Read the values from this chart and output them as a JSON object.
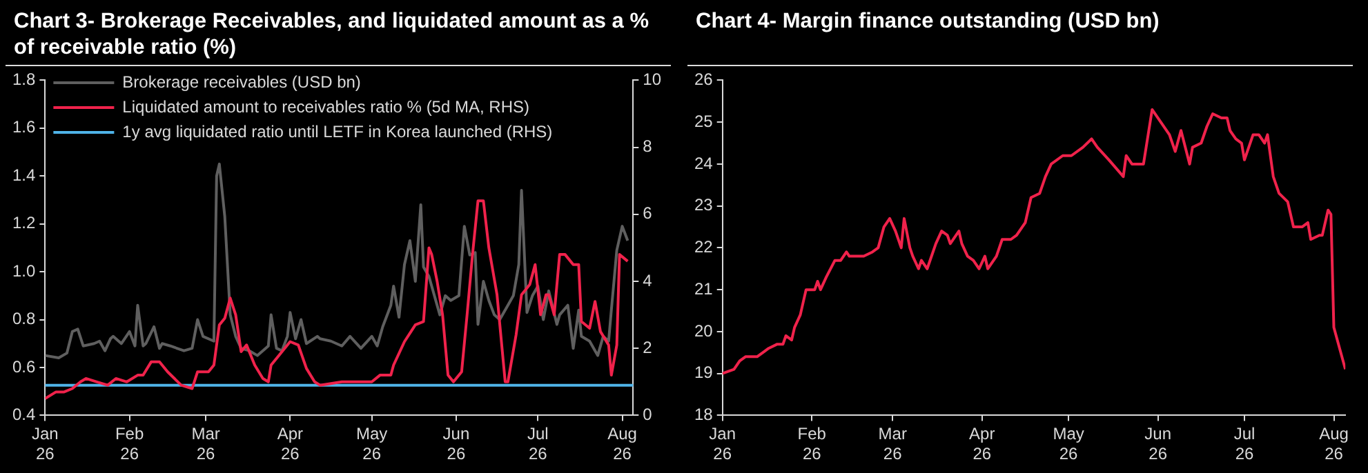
{
  "chart_data": [
    {
      "type": "line",
      "title": "Chart 3- Brokerage Receivables, and liquidated amount as a % of receivable ratio (%)",
      "legend": "top left",
      "grid": false,
      "xlim": [
        "2026-01-01",
        "2026-08-05"
      ],
      "xticks": [
        {
          "value": "2026-01-01",
          "label": "Jan 26"
        },
        {
          "value": "2026-02-01",
          "label": "Feb 26"
        },
        {
          "value": "2026-03-01",
          "label": "Mar 26"
        },
        {
          "value": "2026-04-01",
          "label": "Apr 26"
        },
        {
          "value": "2026-05-01",
          "label": "May 26"
        },
        {
          "value": "2026-06-01",
          "label": "Jun 26"
        },
        {
          "value": "2026-07-01",
          "label": "Jul 26"
        },
        {
          "value": "2026-08-01",
          "label": "Aug 26"
        }
      ],
      "ylim": [
        0.4,
        1.8
      ],
      "yticks": [
        0.4,
        0.6,
        0.8,
        {
          "value": 1,
          "label": "1.0"
        },
        1.2,
        1.4,
        1.6,
        1.8
      ],
      "y2lim": [
        0,
        10
      ],
      "y2ticks": [
        0,
        2,
        4,
        6,
        8,
        10
      ],
      "ref_lines": [
        {
          "axis": "y2",
          "value": 0.9,
          "label": "1y avg liquidated ratio until LETF in Korea launched (RHS)",
          "color": "#4fb3e8"
        }
      ],
      "series": [
        {
          "name": "Brokerage receivables (USD bn)",
          "color": "#5f5f5f",
          "x": [
            "2026-01-01",
            "2026-01-06",
            "2026-01-09",
            "2026-01-11",
            "2026-01-13",
            "2026-01-15",
            "2026-01-19",
            "2026-01-21",
            "2026-01-23",
            "2026-01-25",
            "2026-01-26",
            "2026-01-29",
            "2026-02-01",
            "2026-02-03",
            "2026-02-04",
            "2026-02-06",
            "2026-02-07",
            "2026-02-10",
            "2026-02-12",
            "2026-02-13",
            "2026-02-16",
            "2026-02-21",
            "2026-02-24",
            "2026-02-26",
            "2026-02-28",
            "2026-03-04",
            "2026-03-05",
            "2026-03-06",
            "2026-03-08",
            "2026-03-10",
            "2026-03-12",
            "2026-03-14",
            "2026-03-17",
            "2026-03-20",
            "2026-03-24",
            "2026-03-25",
            "2026-03-27",
            "2026-03-29",
            "2026-03-31",
            "2026-04-01",
            "2026-04-03",
            "2026-04-05",
            "2026-04-07",
            "2026-04-11",
            "2026-04-12",
            "2026-04-16",
            "2026-04-20",
            "2026-04-23",
            "2026-04-27",
            "2026-05-01",
            "2026-05-03",
            "2026-05-05",
            "2026-05-08",
            "2026-05-09",
            "2026-05-11",
            "2026-05-13",
            "2026-05-15",
            "2026-05-17",
            "2026-05-19",
            "2026-05-20",
            "2026-05-22",
            "2026-05-26",
            "2026-05-28",
            "2026-05-30",
            "2026-06-02",
            "2026-06-04",
            "2026-06-06",
            "2026-06-08",
            "2026-06-09",
            "2026-06-11",
            "2026-06-13",
            "2026-06-15",
            "2026-06-17",
            "2026-06-20",
            "2026-06-22",
            "2026-06-24",
            "2026-06-25",
            "2026-06-27",
            "2026-06-29",
            "2026-07-01",
            "2026-07-03",
            "2026-07-05",
            "2026-07-08",
            "2026-07-09",
            "2026-07-12",
            "2026-07-14",
            "2026-07-16",
            "2026-07-17",
            "2026-07-20",
            "2026-07-23",
            "2026-07-25",
            "2026-07-27",
            "2026-07-28",
            "2026-07-30",
            "2026-08-01",
            "2026-08-03"
          ],
          "values": [
            0.65,
            0.64,
            0.66,
            0.75,
            0.76,
            0.69,
            0.7,
            0.71,
            0.67,
            0.72,
            0.73,
            0.7,
            0.75,
            0.69,
            0.86,
            0.69,
            0.7,
            0.77,
            0.68,
            0.7,
            0.69,
            0.67,
            0.68,
            0.8,
            0.73,
            0.71,
            1.4,
            1.45,
            1.23,
            0.82,
            0.73,
            0.68,
            0.67,
            0.65,
            0.69,
            0.82,
            0.68,
            0.67,
            0.73,
            0.83,
            0.72,
            0.8,
            0.7,
            0.73,
            0.72,
            0.71,
            0.69,
            0.73,
            0.68,
            0.73,
            0.69,
            0.77,
            0.86,
            0.94,
            0.81,
            1.03,
            1.13,
            0.96,
            1.28,
            1.02,
            0.98,
            0.82,
            0.9,
            0.88,
            0.9,
            1.19,
            1.07,
            1.08,
            0.78,
            0.96,
            0.88,
            0.82,
            0.8,
            0.86,
            0.9,
            1.03,
            1.34,
            0.83,
            0.9,
            0.94,
            0.8,
            0.92,
            0.78,
            0.82,
            0.86,
            0.68,
            0.84,
            0.73,
            0.71,
            0.65,
            0.73,
            0.71,
            0.84,
            1.09,
            1.19,
            1.13
          ]
        },
        {
          "name": "Liquidated amount to receivables ratio % (5d MA, RHS)",
          "color": "#f0224b",
          "axis": "y2",
          "x": [
            "2026-01-01",
            "2026-01-05",
            "2026-01-08",
            "2026-01-11",
            "2026-01-14",
            "2026-01-16",
            "2026-01-20",
            "2026-01-24",
            "2026-01-27",
            "2026-01-31",
            "2026-02-04",
            "2026-02-06",
            "2026-02-09",
            "2026-02-12",
            "2026-02-15",
            "2026-02-20",
            "2026-02-24",
            "2026-02-26",
            "2026-03-02",
            "2026-03-04",
            "2026-03-06",
            "2026-03-08",
            "2026-03-10",
            "2026-03-12",
            "2026-03-14",
            "2026-03-16",
            "2026-03-19",
            "2026-03-22",
            "2026-03-24",
            "2026-03-25",
            "2026-03-28",
            "2026-04-01",
            "2026-04-04",
            "2026-04-07",
            "2026-04-10",
            "2026-04-12",
            "2026-04-20",
            "2026-04-27",
            "2026-05-01",
            "2026-05-04",
            "2026-05-08",
            "2026-05-09",
            "2026-05-13",
            "2026-05-17",
            "2026-05-20",
            "2026-05-22",
            "2026-05-23",
            "2026-05-25",
            "2026-05-27",
            "2026-05-29",
            "2026-05-31",
            "2026-06-03",
            "2026-06-05",
            "2026-06-07",
            "2026-06-09",
            "2026-06-11",
            "2026-06-13",
            "2026-06-16",
            "2026-06-19",
            "2026-06-20",
            "2026-06-23",
            "2026-06-25",
            "2026-06-28",
            "2026-06-30",
            "2026-07-02",
            "2026-07-04",
            "2026-07-05",
            "2026-07-07",
            "2026-07-09",
            "2026-07-11",
            "2026-07-14",
            "2026-07-16",
            "2026-07-17",
            "2026-07-20",
            "2026-07-22",
            "2026-07-24",
            "2026-07-27",
            "2026-07-28",
            "2026-07-30",
            "2026-07-31",
            "2026-08-03"
          ],
          "values": [
            0.5,
            0.7,
            0.7,
            0.8,
            1,
            1.1,
            1,
            0.9,
            1.1,
            1,
            1.2,
            1.2,
            1.6,
            1.6,
            1.3,
            0.9,
            0.8,
            1.3,
            1.3,
            1.5,
            2.7,
            2.9,
            3.5,
            3,
            1.9,
            2.1,
            1.5,
            1.1,
            1,
            1.5,
            1.8,
            2.2,
            2.1,
            1.4,
            1,
            0.9,
            1,
            1,
            1,
            1.2,
            1.2,
            1.5,
            2.2,
            2.7,
            2.8,
            5,
            4.8,
            4,
            3,
            1.2,
            1,
            1.3,
            3,
            4.8,
            6.4,
            6.4,
            5,
            3.6,
            1,
            1,
            2.4,
            3.6,
            3.9,
            4.5,
            3,
            3.6,
            3.6,
            3,
            4.8,
            4.8,
            4.5,
            4.5,
            2.8,
            2.6,
            3.4,
            2.5,
            2.1,
            1.2,
            2.1,
            4.8,
            4.6
          ]
        }
      ]
    },
    {
      "type": "line",
      "title": "Chart 4- Margin finance outstanding (USD bn)",
      "grid": false,
      "xlim": [
        "2026-01-01",
        "2026-08-05"
      ],
      "xticks": [
        {
          "value": "2026-01-01",
          "label": "Jan 26"
        },
        {
          "value": "2026-02-01",
          "label": "Feb 26"
        },
        {
          "value": "2026-03-01",
          "label": "Mar 26"
        },
        {
          "value": "2026-04-01",
          "label": "Apr 26"
        },
        {
          "value": "2026-05-01",
          "label": "May 26"
        },
        {
          "value": "2026-06-01",
          "label": "Jun 26"
        },
        {
          "value": "2026-07-01",
          "label": "Jul 26"
        },
        {
          "value": "2026-08-01",
          "label": "Aug 26"
        }
      ],
      "ylim": [
        18,
        26
      ],
      "yticks": [
        18,
        19,
        20,
        21,
        22,
        23,
        24,
        25,
        26
      ],
      "series": [
        {
          "color": "#f0224b",
          "x": [
            "2026-01-01",
            "2026-01-05",
            "2026-01-07",
            "2026-01-09",
            "2026-01-13",
            "2026-01-15",
            "2026-01-17",
            "2026-01-20",
            "2026-01-22",
            "2026-01-23",
            "2026-01-25",
            "2026-01-26",
            "2026-01-28",
            "2026-01-30",
            "2026-02-02",
            "2026-02-03",
            "2026-02-04",
            "2026-02-06",
            "2026-02-09",
            "2026-02-11",
            "2026-02-13",
            "2026-02-14",
            "2026-02-19",
            "2026-02-22",
            "2026-02-24",
            "2026-02-26",
            "2026-02-28",
            "2026-03-02",
            "2026-03-04",
            "2026-03-05",
            "2026-03-07",
            "2026-03-08",
            "2026-03-10",
            "2026-03-11",
            "2026-03-13",
            "2026-03-16",
            "2026-03-18",
            "2026-03-20",
            "2026-03-21",
            "2026-03-24",
            "2026-03-25",
            "2026-03-27",
            "2026-03-29",
            "2026-03-31",
            "2026-04-02",
            "2026-04-03",
            "2026-04-06",
            "2026-04-08",
            "2026-04-11",
            "2026-04-13",
            "2026-04-16",
            "2026-04-18",
            "2026-04-21",
            "2026-04-23",
            "2026-04-25",
            "2026-04-29",
            "2026-05-02",
            "2026-05-06",
            "2026-05-09",
            "2026-05-11",
            "2026-05-15",
            "2026-05-20",
            "2026-05-21",
            "2026-05-23",
            "2026-05-27",
            "2026-05-30",
            "2026-06-02",
            "2026-06-05",
            "2026-06-07",
            "2026-06-09",
            "2026-06-12",
            "2026-06-13",
            "2026-06-16",
            "2026-06-18",
            "2026-06-20",
            "2026-06-23",
            "2026-06-25",
            "2026-06-26",
            "2026-06-28",
            "2026-06-30",
            "2026-07-01",
            "2026-07-04",
            "2026-07-06",
            "2026-07-08",
            "2026-07-09",
            "2026-07-11",
            "2026-07-13",
            "2026-07-16",
            "2026-07-18",
            "2026-07-21",
            "2026-07-23",
            "2026-07-24",
            "2026-07-27",
            "2026-07-28",
            "2026-07-30",
            "2026-07-31",
            "2026-08-01",
            "2026-08-03",
            "2026-08-05"
          ],
          "values": [
            19,
            19.1,
            19.3,
            19.4,
            19.4,
            19.5,
            19.6,
            19.7,
            19.7,
            19.9,
            19.8,
            20.1,
            20.4,
            21,
            21,
            21.2,
            21,
            21.3,
            21.7,
            21.7,
            21.9,
            21.8,
            21.8,
            21.9,
            22,
            22.5,
            22.7,
            22.4,
            22,
            22.7,
            22,
            21.8,
            21.5,
            21.7,
            21.5,
            22.1,
            22.4,
            22.3,
            22.1,
            22.4,
            22.1,
            21.8,
            21.7,
            21.5,
            21.8,
            21.5,
            21.8,
            22.2,
            22.2,
            22.3,
            22.6,
            23.2,
            23.3,
            23.7,
            24,
            24.2,
            24.2,
            24.4,
            24.6,
            24.4,
            24.1,
            23.7,
            24.2,
            24,
            24,
            25.3,
            25,
            24.7,
            24.3,
            24.8,
            24,
            24.4,
            24.5,
            24.9,
            25.2,
            25.1,
            25.1,
            24.8,
            24.6,
            24.5,
            24.1,
            24.7,
            24.7,
            24.5,
            24.7,
            23.7,
            23.3,
            23.1,
            22.5,
            22.5,
            22.6,
            22.2,
            22.3,
            22.3,
            22.9,
            22.8,
            20.1,
            19.6,
            19.1
          ]
        }
      ]
    }
  ]
}
